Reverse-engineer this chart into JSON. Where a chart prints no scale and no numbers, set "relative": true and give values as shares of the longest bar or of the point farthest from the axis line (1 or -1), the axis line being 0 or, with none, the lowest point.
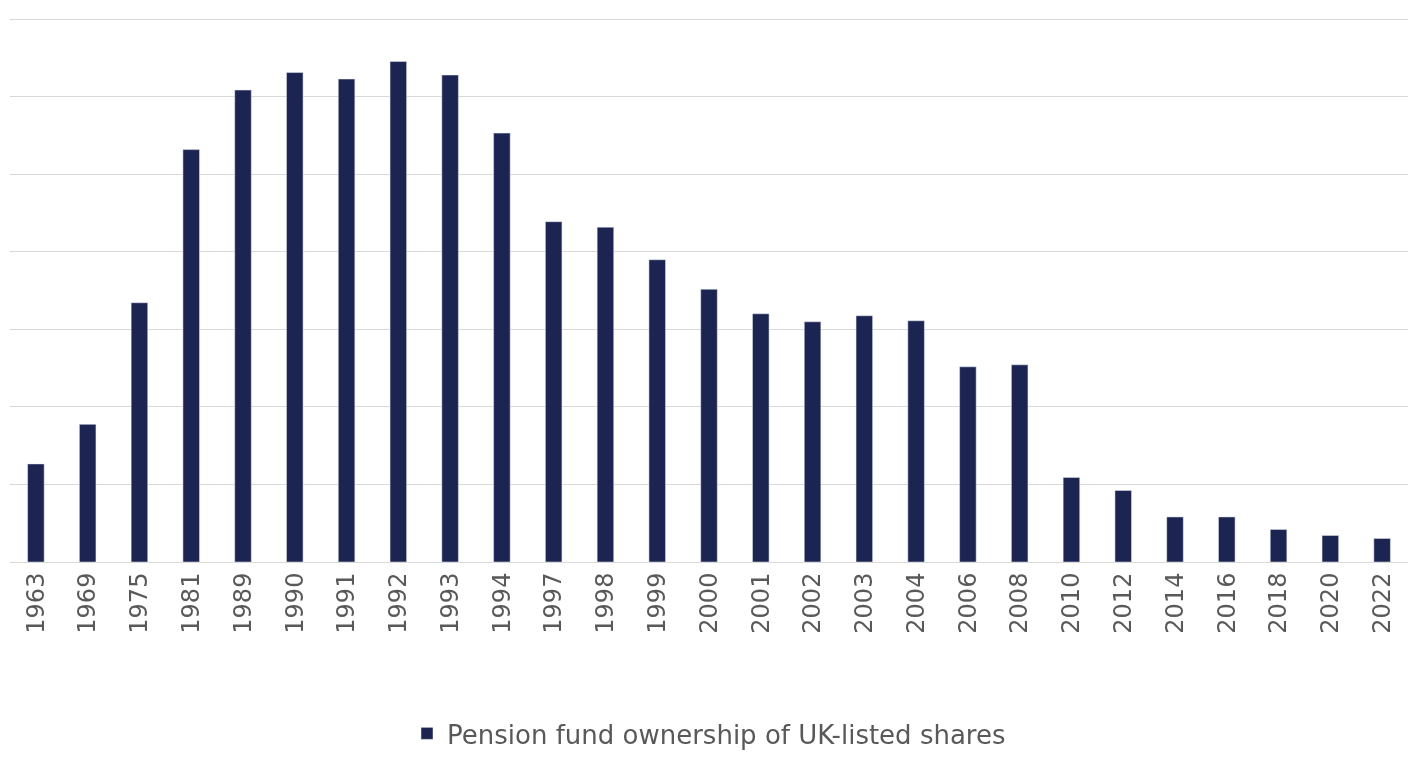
{
  "chart_data": {
    "type": "bar",
    "relative": true,
    "categories": [
      "1963",
      "1969",
      "1975",
      "1981",
      "1989",
      "1990",
      "1991",
      "1992",
      "1993",
      "1994",
      "1997",
      "1998",
      "1999",
      "2000",
      "2001",
      "2002",
      "2003",
      "2004",
      "2006",
      "2008",
      "2010",
      "2012",
      "2014",
      "2016",
      "2018",
      "2020",
      "2022"
    ],
    "series": [
      {
        "name": "Pension fund ownership of UK-listed shares",
        "color": "#1c2452",
        "values": [
          0.196,
          0.275,
          0.518,
          0.824,
          0.943,
          0.978,
          0.965,
          1,
          0.973,
          0.857,
          0.68,
          0.669,
          0.604,
          0.545,
          0.496,
          0.48,
          0.492,
          0.482,
          0.39,
          0.394,
          0.169,
          0.143,
          0.09,
          0.09,
          0.065,
          0.053,
          0.047
        ]
      }
    ],
    "grid": "y",
    "legend": "bottom"
  }
}
